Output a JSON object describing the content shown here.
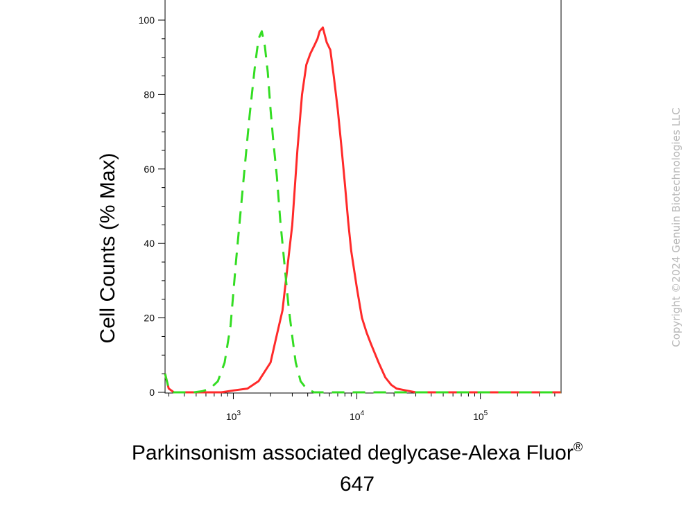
{
  "chart_data": {
    "type": "line",
    "xscale": "log",
    "xlim": [
      280,
      450000
    ],
    "ylim": [
      0,
      100
    ],
    "xlabel_line1": "Parkinsonism associated deglycase-Alexa Fluor",
    "xlabel_reg": "®",
    "xlabel_line2": "647",
    "ylabel": "Cell Counts (% Max)",
    "y_ticks": [
      0,
      20,
      40,
      60,
      80,
      100
    ],
    "x_ticks": [
      {
        "value": 1000,
        "base": "10",
        "exp": "3"
      },
      {
        "value": 10000,
        "base": "10",
        "exp": "4"
      },
      {
        "value": 100000,
        "base": "10",
        "exp": "5"
      }
    ],
    "series": [
      {
        "color": "#ff2a2a",
        "dash": "solid",
        "x": [
          280,
          300,
          330,
          400,
          600,
          800,
          1000,
          1300,
          1600,
          2000,
          2200,
          2500,
          3000,
          3300,
          3600,
          3900,
          4200,
          4500,
          4800,
          5000,
          5300,
          5700,
          6100,
          6500,
          7000,
          7500,
          8000,
          8500,
          9000,
          10000,
          11000,
          12000,
          13000,
          15000,
          17000,
          19000,
          21000,
          25000,
          30000,
          50000,
          100000,
          200000,
          450000
        ],
        "y": [
          5,
          1,
          0,
          0,
          0,
          0,
          0.5,
          1,
          3,
          8,
          14,
          22,
          45,
          65,
          80,
          88,
          91,
          93,
          95,
          97,
          98,
          94,
          92,
          85,
          76,
          66,
          56,
          46,
          38,
          28,
          20,
          16,
          13,
          8,
          4,
          2,
          1,
          0.5,
          0,
          0,
          0,
          0,
          0
        ]
      },
      {
        "color": "#33dd22",
        "dash": "dashed",
        "x": [
          280,
          300,
          330,
          400,
          480,
          560,
          650,
          750,
          850,
          950,
          1050,
          1200,
          1350,
          1500,
          1600,
          1700,
          1800,
          1900,
          2000,
          2100,
          2250,
          2400,
          2600,
          2800,
          3000,
          3200,
          3500,
          3900,
          4500,
          6000,
          10000,
          100000,
          450000
        ],
        "y": [
          5,
          1,
          0,
          0,
          0,
          0.3,
          1,
          3,
          8,
          18,
          35,
          56,
          74,
          88,
          95,
          97,
          93,
          86,
          76,
          68,
          58,
          46,
          34,
          23,
          15,
          8,
          3,
          1,
          0,
          0,
          0,
          0,
          0
        ]
      }
    ]
  },
  "copyright": "Copyright ©2024 Genuin Biotechnologies LLC"
}
